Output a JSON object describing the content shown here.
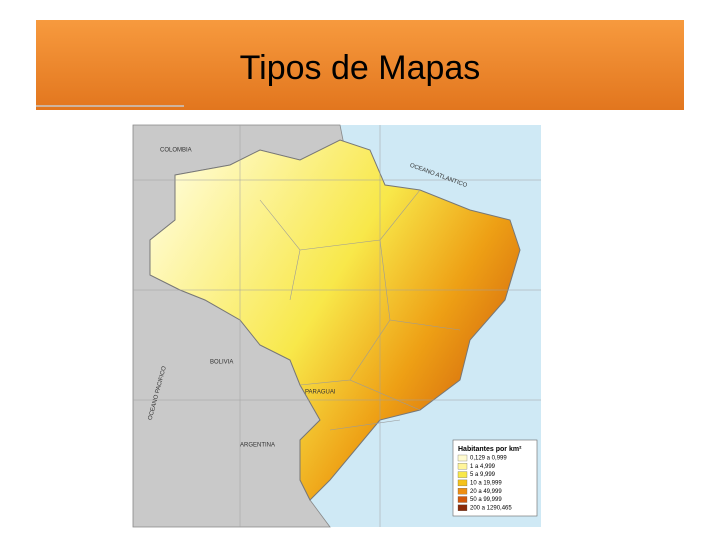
{
  "title": "Tipos de Mapas",
  "map": {
    "labels": [
      {
        "text": "COLOMBIA"
      },
      {
        "text": "BOLIVIA"
      },
      {
        "text": "PARAGUAI"
      },
      {
        "text": "ARGENTINA"
      },
      {
        "text": "OCEANO ATLANTICO"
      },
      {
        "text": "OCEANO PACIFICO"
      }
    ],
    "legend": {
      "title": "Habitantes por km²",
      "items": [
        {
          "label": "0,129 a 0,999",
          "color": "#fffbd0"
        },
        {
          "label": "1 a 4,999",
          "color": "#fff59a"
        },
        {
          "label": "5 a 9,999",
          "color": "#f8e84a"
        },
        {
          "label": "10 a 19,999",
          "color": "#f5c21a"
        },
        {
          "label": "20 a 49,999",
          "color": "#ee8e12"
        },
        {
          "label": "50 a 99,999",
          "color": "#d2570a"
        },
        {
          "label": "200 a 1290,465",
          "color": "#8a2a08"
        }
      ]
    }
  }
}
